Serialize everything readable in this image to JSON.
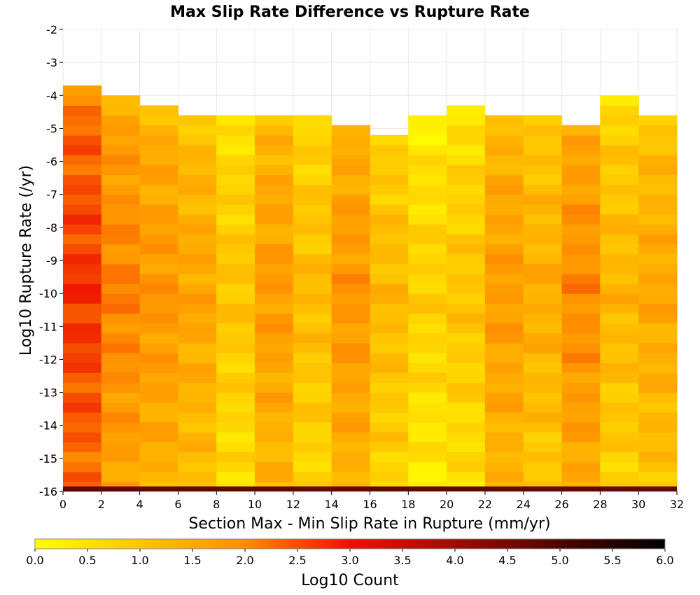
{
  "chart_data": {
    "type": "heatmap",
    "title": "Max Slip Rate Difference vs Rupture Rate",
    "xlabel": "Section Max - Min Slip Rate in Rupture (mm/yr)",
    "ylabel": "Log10 Rupture Rate (/yr)",
    "xlim": [
      0,
      32
    ],
    "ylim": [
      -16,
      -2
    ],
    "x_ticks": [
      "0",
      "2",
      "4",
      "6",
      "8",
      "10",
      "12",
      "14",
      "16",
      "18",
      "20",
      "22",
      "24",
      "26",
      "28",
      "30",
      "32"
    ],
    "y_ticks": [
      "-2",
      "-3",
      "-4",
      "-5",
      "-6",
      "-7",
      "-8",
      "-9",
      "-10",
      "-11",
      "-12",
      "-13",
      "-14",
      "-15",
      "-16"
    ],
    "x_bin_width": 2,
    "y_bin_height": 0.3,
    "y_bin_start": -16,
    "colorbar": {
      "label": "Log10 Count",
      "range": [
        0,
        6
      ],
      "ticks": [
        "0.0",
        "0.5",
        "1.0",
        "1.5",
        "2.0",
        "2.5",
        "3.0",
        "3.5",
        "4.0",
        "4.5",
        "5.0",
        "5.5",
        "6.0"
      ],
      "colors": [
        "#ffff00",
        "#ff8c00",
        "#ee1100",
        "#000000"
      ]
    },
    "columns": [
      {
        "x0": 0,
        "top": -3.6,
        "base": 2.75,
        "empty_bins": []
      },
      {
        "x0": 2,
        "top": -3.9,
        "base": 2.1,
        "empty_bins": []
      },
      {
        "x0": 4,
        "top": -4.2,
        "base": 1.85,
        "empty_bins": []
      },
      {
        "x0": 6,
        "top": -4.5,
        "base": 1.6,
        "empty_bins": []
      },
      {
        "x0": 8,
        "top": -4.5,
        "base": 1.05,
        "empty_bins": [
          -4.8,
          -7.2,
          -7.5,
          -8.7,
          -10.2
        ]
      },
      {
        "x0": 10,
        "top": -4.5,
        "base": 1.75,
        "empty_bins": []
      },
      {
        "x0": 12,
        "top": -4.5,
        "base": 1.2,
        "empty_bins": [
          -6.3,
          -7.5,
          -7.8
        ]
      },
      {
        "x0": 14,
        "top": -4.8,
        "base": 1.85,
        "empty_bins": []
      },
      {
        "x0": 16,
        "top": -5.1,
        "base": 1.25,
        "empty_bins": []
      },
      {
        "x0": 18,
        "top": -4.5,
        "base": 0.85,
        "empty_bins": [
          -5.7,
          -6.0,
          -7.5,
          -9.3,
          -12.0,
          -13.5
        ]
      },
      {
        "x0": 20,
        "top": -4.2,
        "base": 1.05,
        "empty_bins": []
      },
      {
        "x0": 22,
        "top": -4.5,
        "base": 1.75,
        "empty_bins": []
      },
      {
        "x0": 24,
        "top": -4.5,
        "base": 1.45,
        "empty_bins": []
      },
      {
        "x0": 26,
        "top": -4.8,
        "base": 2.0,
        "empty_bins": []
      },
      {
        "x0": 28,
        "top": -3.9,
        "base": 1.3,
        "empty_bins": [
          -4.2,
          -4.5,
          -4.8
        ]
      },
      {
        "x0": 30,
        "top": -4.5,
        "base": 1.55,
        "empty_bins": []
      }
    ],
    "bottom_row": {
      "y0": -16.0,
      "height": 0.15,
      "value": 4.8
    }
  }
}
